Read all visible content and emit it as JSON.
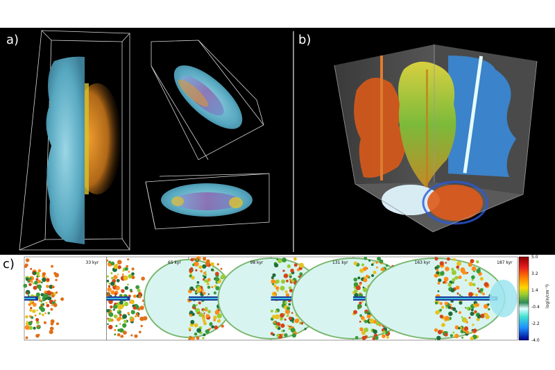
{
  "panels": {
    "a": {
      "label": "a)"
    },
    "b": {
      "label": "b)"
    },
    "c": {
      "label": "c)"
    }
  },
  "time_series": [
    {
      "time": "33 kyr",
      "stage": 0
    },
    {
      "time": "65 kyr",
      "stage": 1
    },
    {
      "time": "98 kyr",
      "stage": 2
    },
    {
      "time": "131 kyr",
      "stage": 3
    },
    {
      "time": "163 kyr",
      "stage": 4
    },
    {
      "time": "187 kyr",
      "stage": 5
    }
  ],
  "colorbar": {
    "title": "log(n/cm⁻³)",
    "ticks": [
      "5.0",
      "3.2",
      "1.4",
      "-0.4",
      "-2.2",
      "-4.0"
    ],
    "colors": [
      "#8b0000",
      "#e31a1c",
      "#ff7f00",
      "#ffd700",
      "#9acd32",
      "#2e8b57",
      "#e0ffff",
      "#40e0d0",
      "#1e90ff",
      "#00008b"
    ]
  }
}
